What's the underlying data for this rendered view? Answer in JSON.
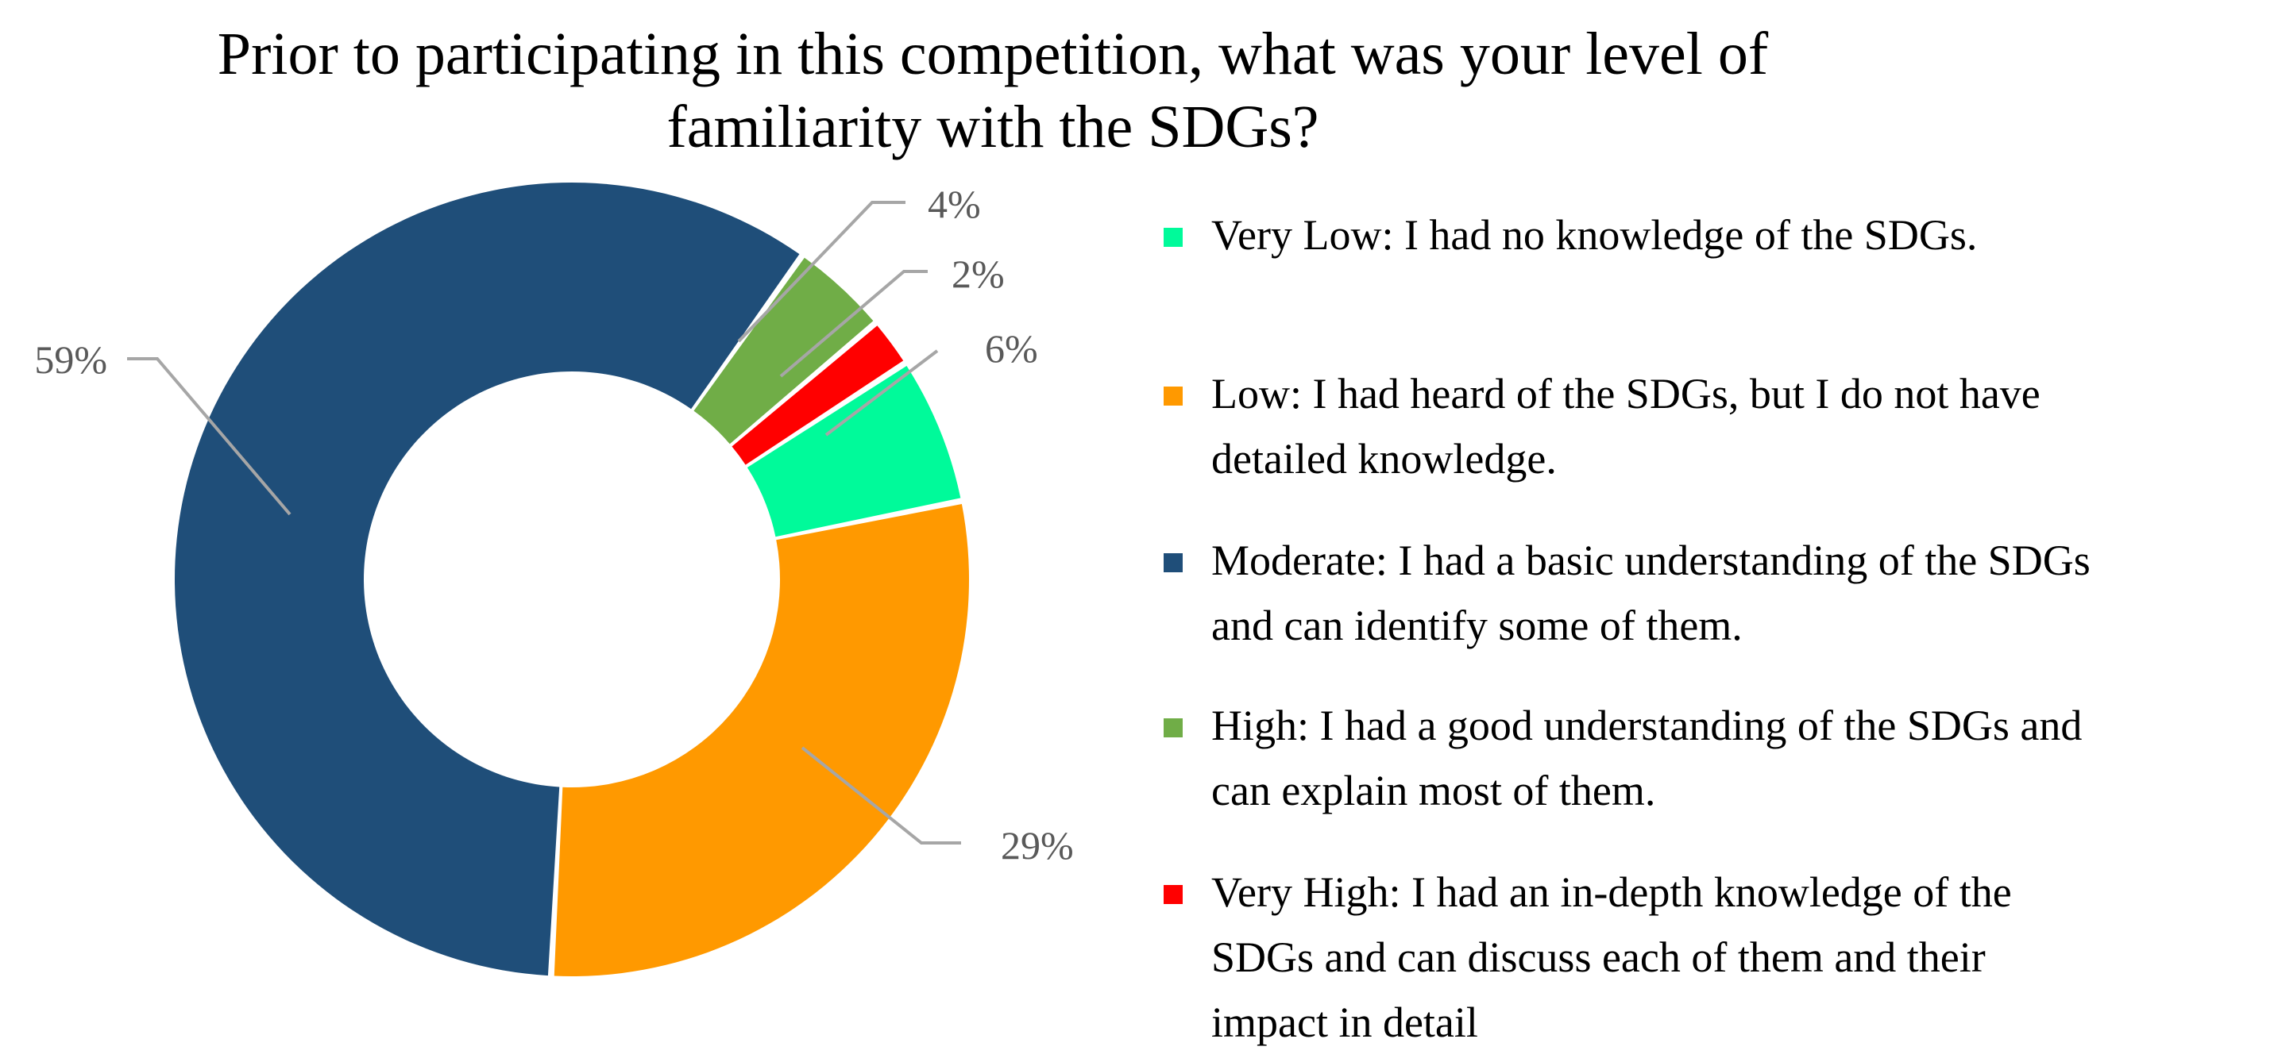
{
  "chart_data": {
    "type": "pie",
    "variant": "donut",
    "title": "Prior to participating in this competition, what was your level of familiarity with the SDGs?",
    "categories": [
      "Very Low: I had no knowledge of the SDGs.",
      "Low: I had heard of the SDGs, but I do not have detailed knowledge.",
      "Moderate: I had a basic understanding of the SDGs and can identify some of them.",
      "High: I had a good understanding of the SDGs and can explain most of them.",
      "Very High: I had an in-depth knowledge of the SDGs and can discuss each of them and their impact in detail"
    ],
    "values": [
      6,
      29,
      59,
      4,
      2
    ],
    "data_labels": [
      "6%",
      "29%",
      "59%",
      "4%",
      "2%"
    ],
    "colors": [
      "#00FA9A",
      "#FF9900",
      "#1F4E79",
      "#70AD47",
      "#FF0000"
    ],
    "legend_position": "right"
  },
  "legend": {
    "items": [
      {
        "lines": [
          "Very Low: I had no knowledge of the SDGs."
        ]
      },
      {
        "lines": [
          "Low: I had heard of the SDGs, but I do not have",
          "detailed knowledge."
        ]
      },
      {
        "lines": [
          "Moderate: I had a basic understanding of the SDGs",
          "and can identify some of them."
        ]
      },
      {
        "lines": [
          "High: I had a good understanding of the SDGs and",
          "can explain most of them."
        ]
      },
      {
        "lines": [
          "Very High: I had an in-depth knowledge of the",
          "SDGs and can discuss each of them and their",
          "impact in detail"
        ]
      }
    ]
  }
}
